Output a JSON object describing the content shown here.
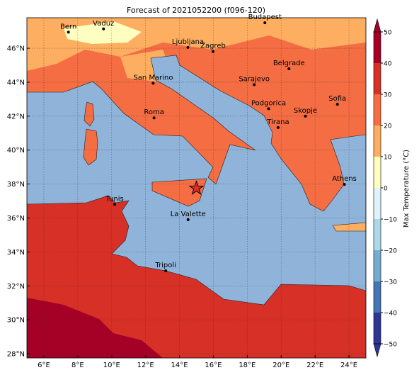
{
  "title": "Forecast of 2021052200 (f096-120)",
  "map": {
    "lon_range": [
      5,
      25
    ],
    "lat_range": [
      27.75,
      47.8
    ],
    "lon_ticks": [
      {
        "value": 6,
        "label": "6°E"
      },
      {
        "value": 8,
        "label": "8°E"
      },
      {
        "value": 10,
        "label": "10°E"
      },
      {
        "value": 12,
        "label": "12°E"
      },
      {
        "value": 14,
        "label": "14°E"
      },
      {
        "value": 16,
        "label": "16°E"
      },
      {
        "value": 18,
        "label": "18°E"
      },
      {
        "value": 20,
        "label": "20°E"
      },
      {
        "value": 22,
        "label": "22°E"
      },
      {
        "value": 24,
        "label": "24°E"
      }
    ],
    "lat_ticks": [
      {
        "value": 28,
        "label": "28°N"
      },
      {
        "value": 30,
        "label": "30°N"
      },
      {
        "value": 32,
        "label": "32°N"
      },
      {
        "value": 34,
        "label": "34°N"
      },
      {
        "value": 36,
        "label": "36°N"
      },
      {
        "value": 38,
        "label": "38°N"
      },
      {
        "value": 40,
        "label": "40°N"
      },
      {
        "value": 42,
        "label": "42°N"
      },
      {
        "value": 44,
        "label": "44°N"
      },
      {
        "value": 46,
        "label": "46°N"
      }
    ],
    "cities": [
      {
        "name": "Bern",
        "lon": 7.45,
        "lat": 46.95
      },
      {
        "name": "Vaduz",
        "lon": 9.52,
        "lat": 47.14
      },
      {
        "name": "Budapest",
        "lon": 19.04,
        "lat": 47.5
      },
      {
        "name": "Ljubljana",
        "lon": 14.5,
        "lat": 46.05
      },
      {
        "name": "Zagreb",
        "lon": 15.98,
        "lat": 45.81
      },
      {
        "name": "Belgrade",
        "lon": 20.46,
        "lat": 44.79
      },
      {
        "name": "San Marino",
        "lon": 12.45,
        "lat": 43.94
      },
      {
        "name": "Sarajevo",
        "lon": 18.41,
        "lat": 43.86
      },
      {
        "name": "Sofia",
        "lon": 23.32,
        "lat": 42.7
      },
      {
        "name": "Podgorica",
        "lon": 19.26,
        "lat": 42.44
      },
      {
        "name": "Skopje",
        "lon": 21.43,
        "lat": 42.0
      },
      {
        "name": "Roma",
        "lon": 12.5,
        "lat": 41.9
      },
      {
        "name": "Tirana",
        "lon": 19.82,
        "lat": 41.33
      },
      {
        "name": "Athens",
        "lon": 23.73,
        "lat": 37.98
      },
      {
        "name": "Tunis",
        "lon": 10.18,
        "lat": 36.8
      },
      {
        "name": "La Valette",
        "lon": 14.51,
        "lat": 35.9
      },
      {
        "name": "Tripoli",
        "lon": 13.19,
        "lat": 32.89
      }
    ],
    "marker": {
      "lon": 15.0,
      "lat": 37.75
    }
  },
  "colorbar": {
    "label": "Max Temperature (°C)",
    "range": [
      -50,
      50
    ],
    "ticks": [
      {
        "value": -50,
        "label": "−50"
      },
      {
        "value": -40,
        "label": "−40"
      },
      {
        "value": -30,
        "label": "−30"
      },
      {
        "value": -20,
        "label": "−20"
      },
      {
        "value": -10,
        "label": "−10"
      },
      0,
      10,
      20,
      30,
      40,
      50
    ],
    "colors": [
      "#313695",
      "#4575b4",
      "#74add1",
      "#abd9e9",
      "#e0f3f8",
      "#fefec0",
      "#fdae61",
      "#f46d43",
      "#d73027",
      "#a50026"
    ]
  }
}
